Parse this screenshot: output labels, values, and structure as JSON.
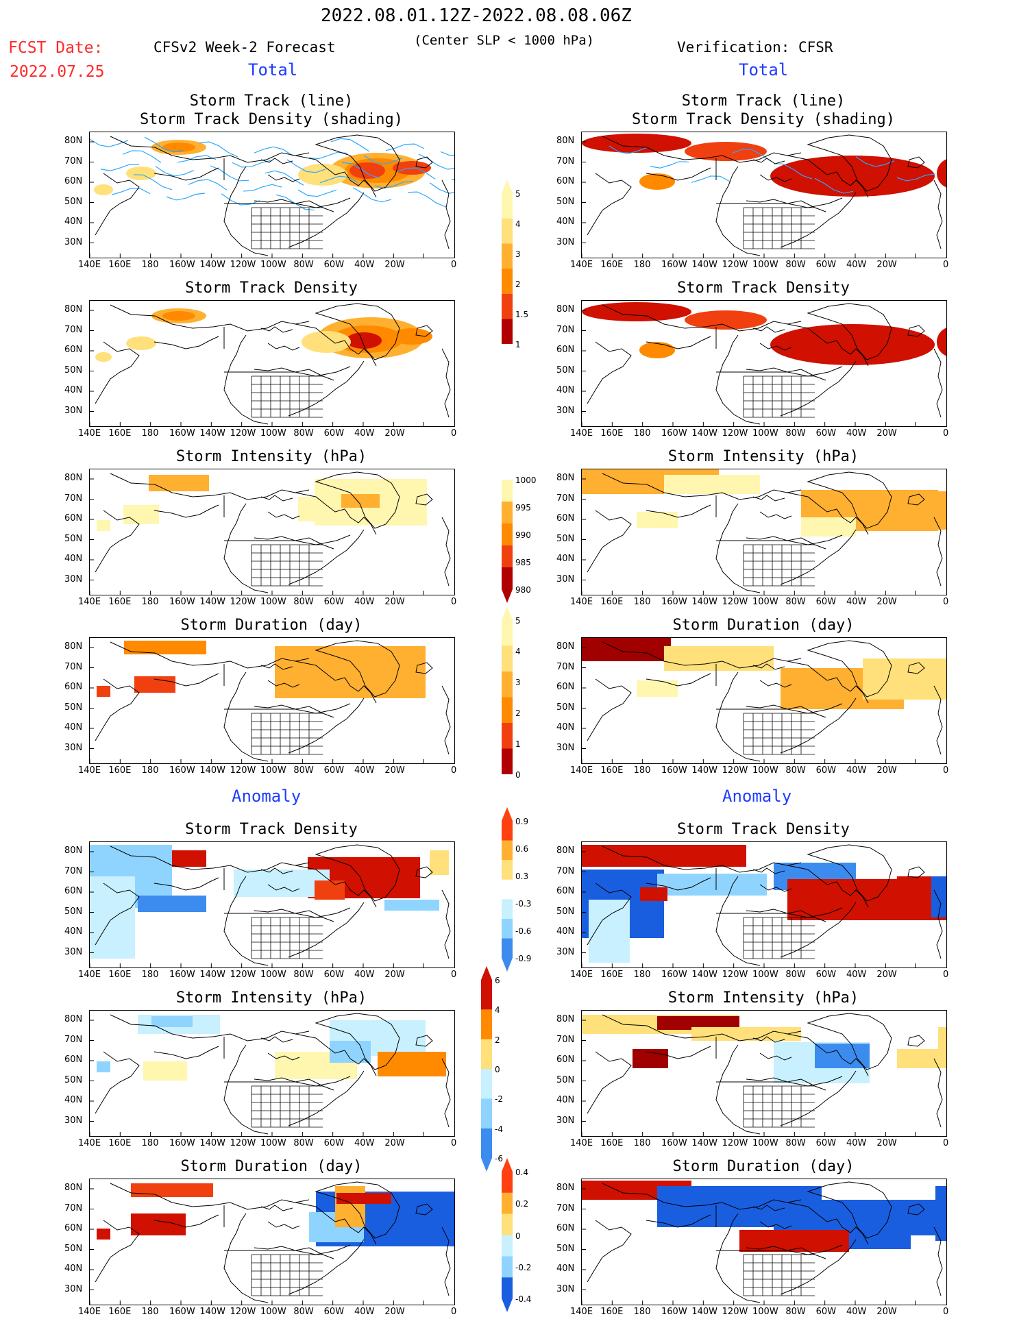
{
  "header": {
    "date_range": "2022.08.01.12Z-2022.08.08.06Z",
    "fcst_label": "FCST Date:",
    "fcst_date": "2022.07.25",
    "left_model": "CFSv2 Week-2 Forecast",
    "center_note": "(Center SLP < 1000 hPa)",
    "right_model": "Verification: CFSR"
  },
  "sections": {
    "total_left": "Total",
    "total_right": "Total",
    "anomaly_left": "Anomaly",
    "anomaly_right": "Anomaly"
  },
  "panel_titles": {
    "track_line": "Storm Track (line)",
    "track_shading": "Storm Track Density (shading)",
    "density": "Storm Track Density",
    "intensity": "Storm Intensity (hPa)",
    "duration": "Storm Duration (day)"
  },
  "axes": {
    "lat_labels": [
      "80N",
      "70N",
      "60N",
      "50N",
      "40N",
      "30N"
    ],
    "lon_labels": [
      "140E",
      "160E",
      "180",
      "160W",
      "140W",
      "120W",
      "100W",
      "80W",
      "60W",
      "40W",
      "20W",
      "0"
    ]
  },
  "colorbars": {
    "density_total": [
      "5",
      "4",
      "3",
      "2",
      "1.5",
      "1"
    ],
    "intensity_total": [
      "1000",
      "995",
      "990",
      "985",
      "980"
    ],
    "duration_total": [
      "5",
      "4",
      "3",
      "2",
      "1",
      "0"
    ],
    "density_anomaly": [
      "0.9",
      "0.6",
      "0.3",
      "-0.3",
      "-0.6",
      "-0.9"
    ],
    "intensity_anomaly": [
      "6",
      "4",
      "2",
      "0",
      "-2",
      "-4",
      "-6"
    ],
    "duration_anomaly": [
      "0.4",
      "0.2",
      "0",
      "-0.2",
      "-0.4"
    ]
  },
  "colors": {
    "warm": [
      "#fff6b0",
      "#ffe07a",
      "#ffb030",
      "#ff8a00",
      "#f04010",
      "#d01000",
      "#a00000"
    ],
    "cool": [
      "#c8f0ff",
      "#8fd4ff",
      "#3c8cf0",
      "#1a5ee0"
    ],
    "track_line": "#2aa8ff",
    "header_red": "#ff2a2a",
    "section_blue": "#1f3cff"
  }
}
